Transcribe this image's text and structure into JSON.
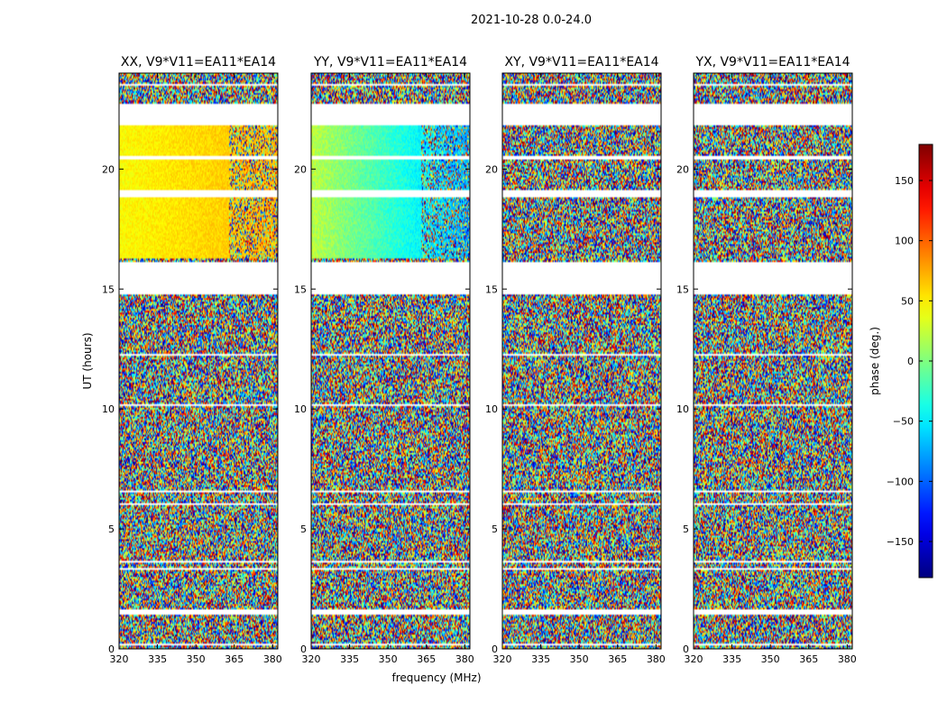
{
  "figure_title": "2021-10-28 0.0-24.0",
  "chart_data": {
    "type": "heatmap",
    "title": "2021-10-28 0.0-24.0",
    "xlabel": "frequency (MHz)",
    "ylabel": "UT (hours)",
    "xlim": [
      320,
      382
    ],
    "ylim": [
      0,
      24
    ],
    "xticks": [
      320,
      335,
      350,
      365,
      380
    ],
    "yticks": [
      0,
      5,
      10,
      15,
      20
    ],
    "panels": [
      {
        "title": "XX, V9*V11=EA11*EA14",
        "pol": "XX",
        "coherent_phase_deg": 55,
        "ripple_deg": 22
      },
      {
        "title": "YY, V9*V11=EA11*EA14",
        "pol": "YY",
        "coherent_phase_deg": -18,
        "ripple_deg": 30
      },
      {
        "title": "XY, V9*V11=EA11*EA14",
        "pol": "XY",
        "coherent_phase_deg": null,
        "ripple_deg": null
      },
      {
        "title": "YX, V9*V11=EA11*EA14",
        "pol": "YX",
        "coherent_phase_deg": null,
        "ripple_deg": null
      }
    ],
    "flagged_ut_ranges": [
      [
        0.15,
        0.25
      ],
      [
        1.45,
        1.65
      ],
      [
        3.3,
        3.35
      ],
      [
        3.6,
        3.7
      ],
      [
        6.0,
        6.1
      ],
      [
        6.5,
        6.6
      ],
      [
        10.1,
        10.2
      ],
      [
        12.2,
        12.3
      ],
      [
        14.6,
        14.65
      ],
      [
        14.75,
        16.1
      ],
      [
        18.85,
        19.1
      ],
      [
        20.4,
        20.55
      ],
      [
        21.8,
        22.75
      ],
      [
        23.45,
        23.55
      ]
    ],
    "coherent_ut_ranges": [
      [
        16.3,
        20.4
      ],
      [
        20.55,
        21.8
      ]
    ],
    "colorbar": {
      "label": "phase (deg.)",
      "range": [
        -180,
        180
      ],
      "ticks": [
        150,
        100,
        50,
        0,
        -50,
        -100,
        -150
      ],
      "colormap": "jet"
    }
  }
}
